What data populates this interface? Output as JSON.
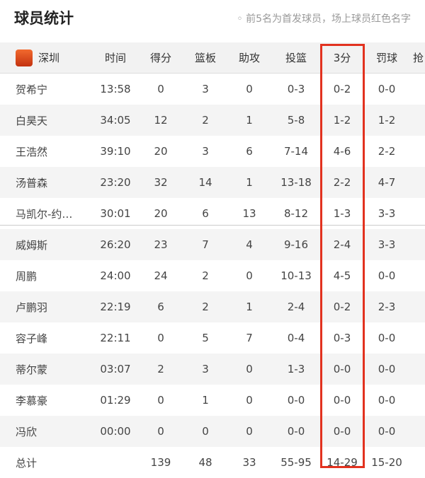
{
  "title": "球员统计",
  "note": "◦ 前5名为首发球员，场上球员红色名字",
  "team": {
    "name": "深圳",
    "logo_icon": "shenzhen-team-logo"
  },
  "columns": [
    "时间",
    "得分",
    "篮板",
    "助攻",
    "投篮",
    "3分",
    "罚球",
    "抢"
  ],
  "highlight_color": "#e2321f",
  "players": [
    [
      "贺希宁",
      "13:58",
      "0",
      "3",
      "0",
      "0-3",
      "0-2",
      "0-0"
    ],
    [
      "白昊天",
      "34:05",
      "12",
      "2",
      "1",
      "5-8",
      "1-2",
      "1-2"
    ],
    [
      "王浩然",
      "39:10",
      "20",
      "3",
      "6",
      "7-14",
      "4-6",
      "2-2"
    ],
    [
      "汤普森",
      "23:20",
      "32",
      "14",
      "1",
      "13-18",
      "2-2",
      "4-7"
    ],
    [
      "马凯尔-约…",
      "30:01",
      "20",
      "6",
      "13",
      "8-12",
      "1-3",
      "3-3"
    ],
    [
      "威姆斯",
      "26:20",
      "23",
      "7",
      "4",
      "9-16",
      "2-4",
      "3-3"
    ],
    [
      "周鹏",
      "24:00",
      "24",
      "2",
      "0",
      "10-13",
      "4-5",
      "0-0"
    ],
    [
      "卢鹏羽",
      "22:19",
      "6",
      "2",
      "1",
      "2-4",
      "0-2",
      "2-3"
    ],
    [
      "容子峰",
      "22:11",
      "0",
      "5",
      "7",
      "0-4",
      "0-3",
      "0-0"
    ],
    [
      "蒂尔蒙",
      "03:07",
      "2",
      "3",
      "0",
      "1-3",
      "0-0",
      "0-0"
    ],
    [
      "李慕豪",
      "01:29",
      "0",
      "1",
      "0",
      "0-0",
      "0-0",
      "0-0"
    ],
    [
      "冯欣",
      "00:00",
      "0",
      "0",
      "0",
      "0-0",
      "0-0",
      "0-0"
    ]
  ],
  "total": [
    "总计",
    "",
    "139",
    "48",
    "33",
    "55-95",
    "14-29",
    "15-20"
  ]
}
